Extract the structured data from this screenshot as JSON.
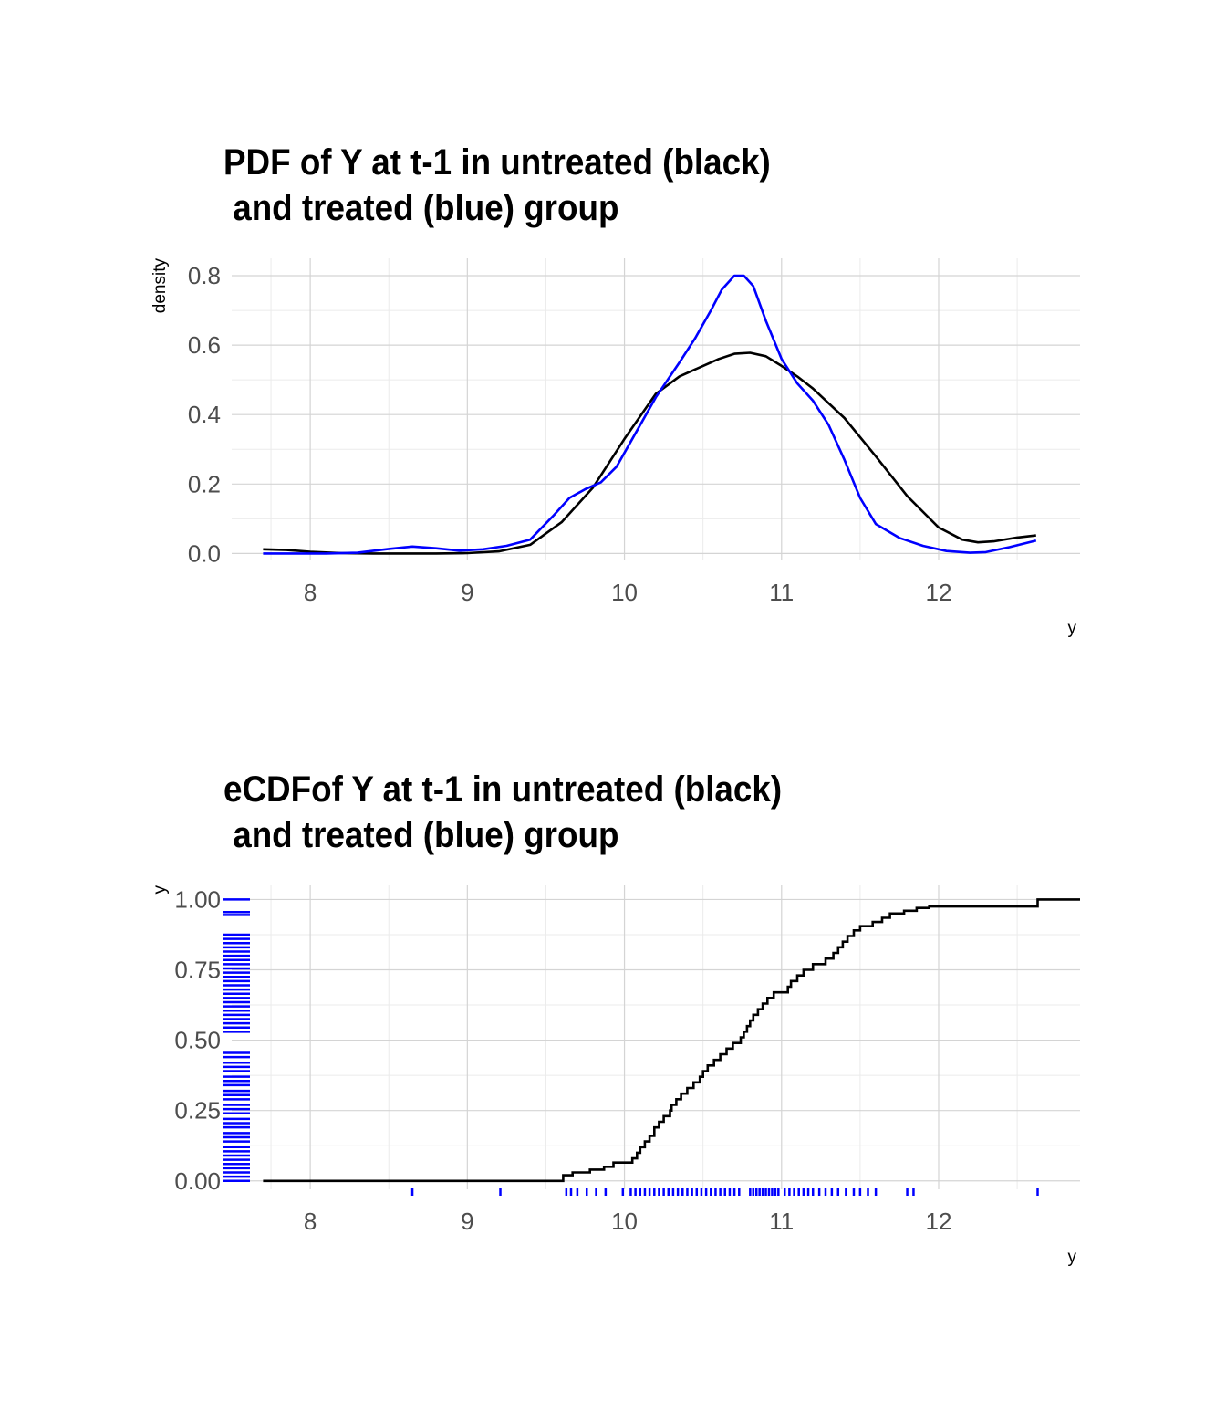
{
  "chart_data": [
    {
      "type": "line",
      "title": "PDF of Y at t-1 in untreated (black)\n and treated (blue) group",
      "xlabel": "y",
      "ylabel": "density",
      "xlim": [
        7.5,
        12.9
      ],
      "ylim": [
        -0.02,
        0.85
      ],
      "xticks": [
        8,
        9,
        10,
        11,
        12
      ],
      "yticks": [
        0.0,
        0.2,
        0.4,
        0.6,
        0.8
      ],
      "ytick_labels": [
        "0.0",
        "0.2",
        "0.4",
        "0.6",
        "0.8"
      ],
      "grid": true,
      "series": [
        {
          "color": "#000000",
          "x": [
            7.7,
            7.85,
            8.0,
            8.2,
            8.4,
            8.6,
            8.8,
            9.0,
            9.2,
            9.4,
            9.6,
            9.8,
            10.0,
            10.2,
            10.35,
            10.5,
            10.6,
            10.7,
            10.8,
            10.9,
            11.0,
            11.1,
            11.2,
            11.4,
            11.6,
            11.8,
            12.0,
            12.15,
            12.25,
            12.35,
            12.5,
            12.62
          ],
          "y": [
            0.012,
            0.01,
            0.005,
            0.001,
            0.0,
            0.0,
            0.0,
            0.001,
            0.006,
            0.025,
            0.09,
            0.19,
            0.33,
            0.46,
            0.51,
            0.54,
            0.56,
            0.575,
            0.578,
            0.568,
            0.54,
            0.51,
            0.475,
            0.39,
            0.28,
            0.165,
            0.075,
            0.04,
            0.032,
            0.035,
            0.046,
            0.052
          ]
        },
        {
          "color": "#0000ff",
          "x": [
            7.7,
            7.9,
            8.1,
            8.3,
            8.5,
            8.65,
            8.8,
            8.95,
            9.1,
            9.25,
            9.4,
            9.55,
            9.65,
            9.75,
            9.85,
            9.95,
            10.05,
            10.2,
            10.35,
            10.45,
            10.55,
            10.62,
            10.7,
            10.76,
            10.82,
            10.9,
            11.0,
            11.1,
            11.2,
            11.3,
            11.4,
            11.5,
            11.6,
            11.75,
            11.9,
            12.05,
            12.2,
            12.3,
            12.45,
            12.62
          ],
          "y": [
            0.0,
            0.0,
            0.0,
            0.002,
            0.013,
            0.02,
            0.015,
            0.008,
            0.012,
            0.022,
            0.04,
            0.11,
            0.16,
            0.185,
            0.205,
            0.25,
            0.33,
            0.45,
            0.55,
            0.62,
            0.7,
            0.76,
            0.8,
            0.8,
            0.77,
            0.67,
            0.56,
            0.49,
            0.44,
            0.37,
            0.27,
            0.16,
            0.085,
            0.045,
            0.022,
            0.007,
            0.002,
            0.004,
            0.018,
            0.037
          ]
        }
      ]
    },
    {
      "type": "line",
      "title": "eCDFof Y at t-1 in untreated (black)\n and treated (blue) group",
      "xlabel": "y",
      "ylabel": "y",
      "xlim": [
        7.5,
        12.9
      ],
      "ylim": [
        -0.03,
        1.05
      ],
      "xticks": [
        8,
        9,
        10,
        11,
        12
      ],
      "yticks": [
        0.0,
        0.25,
        0.5,
        0.75,
        1.0
      ],
      "ytick_labels": [
        "0.00",
        "0.25",
        "0.50",
        "0.75",
        "1.00"
      ],
      "grid": true,
      "series": [
        {
          "color": "#000000",
          "step_x": [
            7.7,
            9.61,
            9.67,
            9.78,
            9.87,
            9.93,
            10.05,
            10.08,
            10.1,
            10.13,
            10.16,
            10.19,
            10.22,
            10.25,
            10.29,
            10.3,
            10.33,
            10.36,
            10.4,
            10.44,
            10.48,
            10.5,
            10.53,
            10.57,
            10.61,
            10.65,
            10.69,
            10.74,
            10.76,
            10.78,
            10.8,
            10.82,
            10.85,
            10.88,
            10.91,
            10.95,
            11.04,
            11.06,
            11.1,
            11.14,
            11.2,
            11.28,
            11.33,
            11.36,
            11.39,
            11.42,
            11.46,
            11.5,
            11.58,
            11.64,
            11.69,
            11.78,
            11.86,
            11.94,
            12.63
          ],
          "step_y": [
            0.0,
            0.02,
            0.03,
            0.04,
            0.05,
            0.065,
            0.08,
            0.1,
            0.12,
            0.14,
            0.16,
            0.19,
            0.21,
            0.23,
            0.25,
            0.27,
            0.29,
            0.31,
            0.33,
            0.35,
            0.37,
            0.39,
            0.41,
            0.43,
            0.45,
            0.47,
            0.49,
            0.51,
            0.53,
            0.55,
            0.57,
            0.59,
            0.61,
            0.63,
            0.65,
            0.67,
            0.69,
            0.71,
            0.73,
            0.75,
            0.77,
            0.79,
            0.81,
            0.83,
            0.85,
            0.87,
            0.89,
            0.905,
            0.92,
            0.935,
            0.95,
            0.96,
            0.97,
            0.975,
            1.0
          ],
          "end_x": 12.9
        }
      ],
      "rug_x": {
        "color": "#0000ff",
        "values": [
          8.65,
          9.21,
          9.63,
          9.66,
          9.7,
          9.76,
          9.82,
          9.88,
          9.99,
          10.04,
          10.07,
          10.1,
          10.13,
          10.16,
          10.19,
          10.22,
          10.25,
          10.28,
          10.31,
          10.34,
          10.37,
          10.4,
          10.43,
          10.46,
          10.49,
          10.52,
          10.55,
          10.58,
          10.61,
          10.64,
          10.67,
          10.7,
          10.73,
          10.8,
          10.82,
          10.84,
          10.86,
          10.88,
          10.9,
          10.92,
          10.94,
          10.96,
          10.98,
          11.02,
          11.05,
          11.08,
          11.11,
          11.14,
          11.17,
          11.2,
          11.24,
          11.28,
          11.32,
          11.36,
          11.41,
          11.46,
          11.5,
          11.55,
          11.6,
          11.8,
          11.84,
          12.63
        ]
      },
      "rug_y": {
        "color": "#0000ff",
        "values": [
          0.0,
          0.015,
          0.03,
          0.045,
          0.06,
          0.075,
          0.09,
          0.105,
          0.12,
          0.14,
          0.155,
          0.17,
          0.19,
          0.205,
          0.22,
          0.24,
          0.255,
          0.27,
          0.29,
          0.305,
          0.32,
          0.34,
          0.355,
          0.37,
          0.39,
          0.405,
          0.42,
          0.44,
          0.455,
          0.53,
          0.545,
          0.56,
          0.575,
          0.59,
          0.605,
          0.62,
          0.635,
          0.65,
          0.665,
          0.68,
          0.695,
          0.71,
          0.725,
          0.74,
          0.755,
          0.77,
          0.785,
          0.8,
          0.815,
          0.83,
          0.845,
          0.86,
          0.875,
          0.945,
          0.955,
          1.0
        ]
      }
    }
  ]
}
